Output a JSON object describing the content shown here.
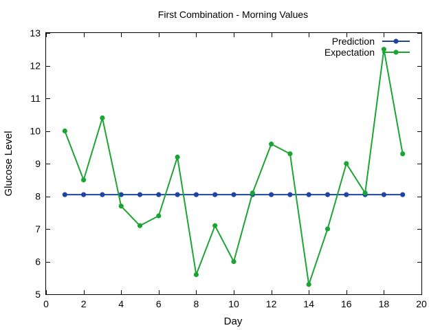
{
  "chart_data": {
    "type": "line",
    "title": "First Combination - Morning Values",
    "xlabel": "Day",
    "ylabel": "Glucose Level",
    "xlim": [
      0,
      20
    ],
    "ylim": [
      5,
      13
    ],
    "xticks": [
      0,
      2,
      4,
      6,
      8,
      10,
      12,
      14,
      16,
      18,
      20
    ],
    "yticks": [
      5,
      6,
      7,
      8,
      9,
      10,
      11,
      12,
      13
    ],
    "grid": false,
    "legend_position": "top-right",
    "x": [
      1,
      2,
      3,
      4,
      5,
      6,
      7,
      8,
      9,
      10,
      11,
      12,
      13,
      14,
      15,
      16,
      17,
      18,
      19
    ],
    "series": [
      {
        "name": "Prediction",
        "color": "#1f45a3",
        "values": [
          8.05,
          8.05,
          8.05,
          8.05,
          8.05,
          8.05,
          8.05,
          8.05,
          8.05,
          8.05,
          8.05,
          8.05,
          8.05,
          8.05,
          8.05,
          8.05,
          8.05,
          8.05,
          8.05
        ]
      },
      {
        "name": "Expectation",
        "color": "#1aa533",
        "values": [
          10.0,
          8.5,
          10.4,
          7.7,
          7.1,
          7.4,
          9.2,
          5.6,
          7.1,
          6.0,
          8.1,
          9.6,
          9.3,
          5.3,
          7.0,
          9.0,
          8.1,
          12.5,
          9.3
        ]
      }
    ]
  }
}
